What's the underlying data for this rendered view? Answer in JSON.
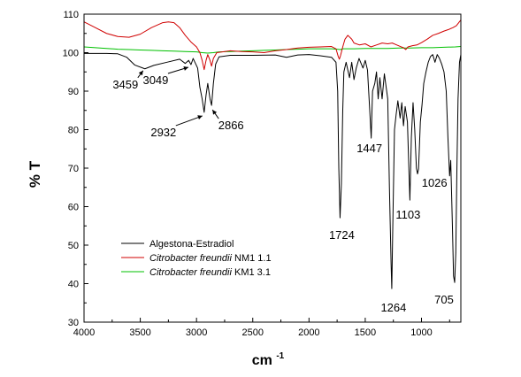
{
  "chart_data": {
    "type": "line",
    "xlabel": "cm",
    "xlabel_sup": "-1",
    "ylabel": "% T",
    "xlim": [
      4000,
      650
    ],
    "ylim": [
      30,
      110
    ],
    "x_ticks": [
      4000,
      3500,
      3000,
      2500,
      2000,
      1500,
      1000
    ],
    "y_ticks": [
      30,
      40,
      50,
      60,
      70,
      80,
      90,
      100,
      110
    ],
    "grid": false,
    "legend_position": "lower-left",
    "series": [
      {
        "name": "Algestona-Estradiol",
        "name_italic": "",
        "name_suffix": "",
        "color": "#000000",
        "points": [
          [
            4000,
            99.8
          ],
          [
            3800,
            99.8
          ],
          [
            3700,
            99.7
          ],
          [
            3620,
            98.8
          ],
          [
            3550,
            96.8
          ],
          [
            3459,
            95.8
          ],
          [
            3380,
            96.7
          ],
          [
            3250,
            97.6
          ],
          [
            3150,
            98.3
          ],
          [
            3100,
            97.2
          ],
          [
            3070,
            98.0
          ],
          [
            3049,
            96.9
          ],
          [
            3030,
            98.5
          ],
          [
            2990,
            96.0
          ],
          [
            2970,
            91.0
          ],
          [
            2950,
            88.0
          ],
          [
            2932,
            84.5
          ],
          [
            2915,
            89.0
          ],
          [
            2900,
            92.0
          ],
          [
            2880,
            88.0
          ],
          [
            2866,
            86.3
          ],
          [
            2850,
            92.0
          ],
          [
            2830,
            97.0
          ],
          [
            2800,
            98.9
          ],
          [
            2700,
            99.3
          ],
          [
            2500,
            99.3
          ],
          [
            2300,
            99.4
          ],
          [
            2200,
            98.8
          ],
          [
            2100,
            99.4
          ],
          [
            2000,
            99.5
          ],
          [
            1900,
            99.2
          ],
          [
            1800,
            98.8
          ],
          [
            1760,
            97.5
          ],
          [
            1745,
            90.0
          ],
          [
            1735,
            70.0
          ],
          [
            1724,
            57.1
          ],
          [
            1712,
            66.0
          ],
          [
            1700,
            85.0
          ],
          [
            1690,
            95.0
          ],
          [
            1670,
            97.5
          ],
          [
            1640,
            93.5
          ],
          [
            1620,
            97.5
          ],
          [
            1600,
            93.0
          ],
          [
            1580,
            96.0
          ],
          [
            1555,
            98.5
          ],
          [
            1520,
            96.0
          ],
          [
            1500,
            98.0
          ],
          [
            1480,
            95.5
          ],
          [
            1460,
            85.0
          ],
          [
            1447,
            77.8
          ],
          [
            1435,
            90.0
          ],
          [
            1415,
            92.0
          ],
          [
            1400,
            95.0
          ],
          [
            1385,
            88.0
          ],
          [
            1370,
            93.5
          ],
          [
            1350,
            88.0
          ],
          [
            1330,
            94.5
          ],
          [
            1300,
            88.0
          ],
          [
            1285,
            65.0
          ],
          [
            1270,
            45.0
          ],
          [
            1264,
            38.7
          ],
          [
            1255,
            55.0
          ],
          [
            1240,
            80.0
          ],
          [
            1225,
            84.0
          ],
          [
            1210,
            87.5
          ],
          [
            1190,
            83.0
          ],
          [
            1175,
            87.0
          ],
          [
            1160,
            81.0
          ],
          [
            1145,
            86.0
          ],
          [
            1125,
            82.0
          ],
          [
            1110,
            68.0
          ],
          [
            1103,
            61.7
          ],
          [
            1090,
            78.0
          ],
          [
            1075,
            87.0
          ],
          [
            1060,
            80.0
          ],
          [
            1045,
            70.0
          ],
          [
            1035,
            68.5
          ],
          [
            1026,
            69.8
          ],
          [
            1010,
            82.0
          ],
          [
            995,
            86.5
          ],
          [
            980,
            92.0
          ],
          [
            960,
            95.0
          ],
          [
            940,
            97.5
          ],
          [
            920,
            99.0
          ],
          [
            900,
            99.5
          ],
          [
            880,
            97.5
          ],
          [
            860,
            99.5
          ],
          [
            840,
            98.5
          ],
          [
            820,
            97.0
          ],
          [
            800,
            95.0
          ],
          [
            780,
            90.0
          ],
          [
            765,
            78.0
          ],
          [
            750,
            68.0
          ],
          [
            740,
            72.0
          ],
          [
            725,
            55.0
          ],
          [
            715,
            42.0
          ],
          [
            705,
            40.3
          ],
          [
            695,
            48.0
          ],
          [
            685,
            70.0
          ],
          [
            675,
            88.0
          ],
          [
            662,
            97.5
          ],
          [
            650,
            99.5
          ]
        ]
      },
      {
        "name": "Citrobacter freundii NM1 1.1",
        "name_italic": "Citrobacter freundii",
        "name_suffix": " NM1 1.1",
        "color": "#d00000",
        "points": [
          [
            4000,
            108.0
          ],
          [
            3900,
            106.5
          ],
          [
            3800,
            105.0
          ],
          [
            3700,
            104.2
          ],
          [
            3600,
            104.0
          ],
          [
            3500,
            104.8
          ],
          [
            3400,
            106.5
          ],
          [
            3300,
            107.8
          ],
          [
            3250,
            108.0
          ],
          [
            3200,
            107.8
          ],
          [
            3150,
            106.5
          ],
          [
            3100,
            104.5
          ],
          [
            3050,
            102.8
          ],
          [
            3000,
            101.5
          ],
          [
            2970,
            100.0
          ],
          [
            2950,
            98.0
          ],
          [
            2932,
            95.6
          ],
          [
            2915,
            98.0
          ],
          [
            2900,
            99.5
          ],
          [
            2880,
            98.0
          ],
          [
            2866,
            96.5
          ],
          [
            2850,
            98.5
          ],
          [
            2820,
            100.0
          ],
          [
            2700,
            100.5
          ],
          [
            2600,
            100.3
          ],
          [
            2500,
            100.2
          ],
          [
            2400,
            100.0
          ],
          [
            2300,
            100.5
          ],
          [
            2200,
            100.8
          ],
          [
            2100,
            101.2
          ],
          [
            2000,
            101.4
          ],
          [
            1900,
            101.5
          ],
          [
            1800,
            101.6
          ],
          [
            1760,
            101.0
          ],
          [
            1740,
            99.0
          ],
          [
            1730,
            98.3
          ],
          [
            1720,
            99.2
          ],
          [
            1700,
            101.5
          ],
          [
            1680,
            103.5
          ],
          [
            1655,
            104.5
          ],
          [
            1620,
            103.5
          ],
          [
            1600,
            102.5
          ],
          [
            1550,
            102.0
          ],
          [
            1500,
            102.3
          ],
          [
            1450,
            101.5
          ],
          [
            1400,
            102.0
          ],
          [
            1350,
            102.5
          ],
          [
            1300,
            102.3
          ],
          [
            1260,
            102.5
          ],
          [
            1220,
            102.0
          ],
          [
            1180,
            101.5
          ],
          [
            1160,
            101.3
          ],
          [
            1140,
            100.8
          ],
          [
            1120,
            101.5
          ],
          [
            1080,
            101.8
          ],
          [
            1040,
            102.0
          ],
          [
            1000,
            102.6
          ],
          [
            950,
            103.5
          ],
          [
            900,
            104.5
          ],
          [
            850,
            105.0
          ],
          [
            800,
            105.6
          ],
          [
            760,
            106.0
          ],
          [
            720,
            106.5
          ],
          [
            690,
            107.0
          ],
          [
            650,
            108.5
          ]
        ]
      },
      {
        "name": "Citrobacter freundii KM1 3.1",
        "name_italic": "Citrobacter freundii",
        "name_suffix": " KM1 3.1",
        "color": "#00c000",
        "points": [
          [
            4000,
            101.5
          ],
          [
            3900,
            101.3
          ],
          [
            3800,
            101.1
          ],
          [
            3700,
            100.9
          ],
          [
            3600,
            100.8
          ],
          [
            3500,
            100.7
          ],
          [
            3400,
            100.6
          ],
          [
            3300,
            100.5
          ],
          [
            3200,
            100.4
          ],
          [
            3100,
            100.3
          ],
          [
            3000,
            100.2
          ],
          [
            2950,
            100.0
          ],
          [
            2900,
            99.9
          ],
          [
            2850,
            100.0
          ],
          [
            2800,
            100.2
          ],
          [
            2700,
            100.3
          ],
          [
            2600,
            100.4
          ],
          [
            2500,
            100.5
          ],
          [
            2400,
            100.6
          ],
          [
            2300,
            100.7
          ],
          [
            2200,
            100.8
          ],
          [
            2100,
            100.9
          ],
          [
            2000,
            101.0
          ],
          [
            1900,
            101.0
          ],
          [
            1800,
            101.0
          ],
          [
            1750,
            100.9
          ],
          [
            1720,
            100.8
          ],
          [
            1700,
            101.0
          ],
          [
            1600,
            101.0
          ],
          [
            1500,
            101.1
          ],
          [
            1400,
            101.1
          ],
          [
            1300,
            101.1
          ],
          [
            1200,
            101.2
          ],
          [
            1100,
            101.2
          ],
          [
            1000,
            101.3
          ],
          [
            900,
            101.3
          ],
          [
            800,
            101.4
          ],
          [
            700,
            101.5
          ],
          [
            650,
            101.6
          ]
        ]
      }
    ],
    "annotations": [
      {
        "text": "3459",
        "x": 3459,
        "y": 95.8,
        "arrow": true
      },
      {
        "text": "3049",
        "x": 3049,
        "y": 96.9,
        "arrow": true
      },
      {
        "text": "2932",
        "x": 2932,
        "y": 84.5,
        "arrow": true
      },
      {
        "text": "2866",
        "x": 2866,
        "y": 86.3,
        "arrow": true
      },
      {
        "text": "1724",
        "x": 1724,
        "y": 57.1,
        "arrow": false
      },
      {
        "text": "1447",
        "x": 1447,
        "y": 77.8,
        "arrow": false
      },
      {
        "text": "1264",
        "x": 1264,
        "y": 38.7,
        "arrow": false
      },
      {
        "text": "1103",
        "x": 1103,
        "y": 61.7,
        "arrow": false
      },
      {
        "text": "1026",
        "x": 1026,
        "y": 69.8,
        "arrow": false
      },
      {
        "text": "705",
        "x": 705,
        "y": 40.3,
        "arrow": false
      }
    ]
  }
}
